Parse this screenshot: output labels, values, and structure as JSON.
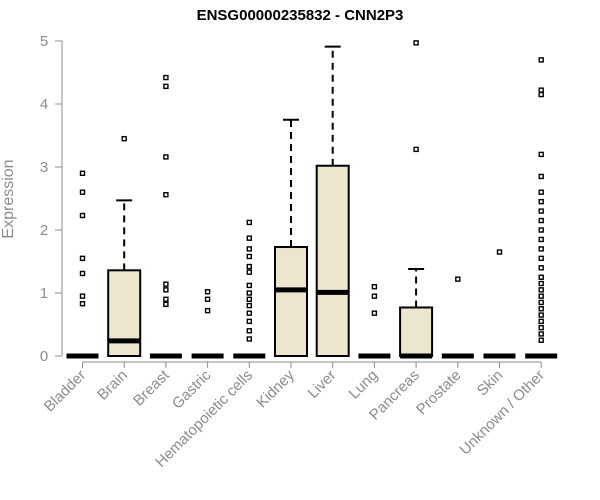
{
  "chart_data": {
    "type": "boxplot",
    "title": "ENSG00000235832 - CNN2P3",
    "xlabel": "",
    "ylabel": "Expression",
    "ylim": [
      0,
      5
    ],
    "yticks": [
      0,
      1,
      2,
      3,
      4,
      5
    ],
    "grid": false,
    "legend": "none",
    "colors": {
      "box_fill": "#ede6cf",
      "stroke": "#000000",
      "axis_text": "#8c8c8c"
    },
    "categories": [
      "Bladder",
      "Brain",
      "Breast",
      "Gastric",
      "Hematopoietic cells",
      "Kidney",
      "Liver",
      "Lung",
      "Pancreas",
      "Prostate",
      "Skin",
      "Unknown / Other"
    ],
    "boxes": [
      {
        "category": "Bladder",
        "q1": 0,
        "median": 0,
        "q3": 0,
        "whisker_low": 0,
        "whisker_high": 0,
        "outliers": [
          0.83,
          0.95,
          1.31,
          1.55,
          2.23,
          2.6,
          2.9
        ]
      },
      {
        "category": "Brain",
        "q1": 0,
        "median": 0.24,
        "q3": 1.36,
        "whisker_low": 0,
        "whisker_high": 2.47,
        "outliers": [
          3.45
        ]
      },
      {
        "category": "Breast",
        "q1": 0,
        "median": 0,
        "q3": 0,
        "whisker_low": 0,
        "whisker_high": 0,
        "outliers": [
          0.82,
          0.9,
          1.05,
          1.14,
          2.56,
          3.16,
          4.28,
          4.42
        ]
      },
      {
        "category": "Gastric",
        "q1": 0,
        "median": 0,
        "q3": 0,
        "whisker_low": 0,
        "whisker_high": 0,
        "outliers": [
          0.72,
          0.9,
          1.02
        ]
      },
      {
        "category": "Hematopoietic cells",
        "q1": 0,
        "median": 0,
        "q3": 0,
        "whisker_low": 0,
        "whisker_high": 0,
        "outliers": [
          0.27,
          0.4,
          0.55,
          0.68,
          0.8,
          0.9,
          1.0,
          1.12,
          1.33,
          1.42,
          1.58,
          1.7,
          1.87,
          2.12
        ]
      },
      {
        "category": "Kidney",
        "q1": 0,
        "median": 1.05,
        "q3": 1.73,
        "whisker_low": 0,
        "whisker_high": 3.75,
        "outliers": []
      },
      {
        "category": "Liver",
        "q1": 0,
        "median": 1.01,
        "q3": 3.02,
        "whisker_low": 0,
        "whisker_high": 4.91,
        "outliers": []
      },
      {
        "category": "Lung",
        "q1": 0,
        "median": 0,
        "q3": 0,
        "whisker_low": 0,
        "whisker_high": 0,
        "outliers": [
          0.68,
          0.95,
          1.1
        ]
      },
      {
        "category": "Pancreas",
        "q1": 0,
        "median": 0,
        "q3": 0.77,
        "whisker_low": 0,
        "whisker_high": 1.38,
        "outliers": [
          3.28,
          4.97
        ]
      },
      {
        "category": "Prostate",
        "q1": 0,
        "median": 0,
        "q3": 0,
        "whisker_low": 0,
        "whisker_high": 0,
        "outliers": [
          1.22
        ]
      },
      {
        "category": "Skin",
        "q1": 0,
        "median": 0,
        "q3": 0,
        "whisker_low": 0,
        "whisker_high": 0,
        "outliers": [
          1.65
        ]
      },
      {
        "category": "Unknown / Other",
        "q1": 0,
        "median": 0,
        "q3": 0,
        "whisker_low": 0,
        "whisker_high": 0,
        "outliers": [
          0.25,
          0.35,
          0.45,
          0.55,
          0.65,
          0.75,
          0.85,
          0.95,
          1.05,
          1.15,
          1.25,
          1.4,
          1.55,
          1.7,
          1.85,
          2.0,
          2.15,
          2.3,
          2.45,
          2.6,
          2.85,
          3.2,
          4.15,
          4.22,
          4.7
        ]
      }
    ]
  }
}
